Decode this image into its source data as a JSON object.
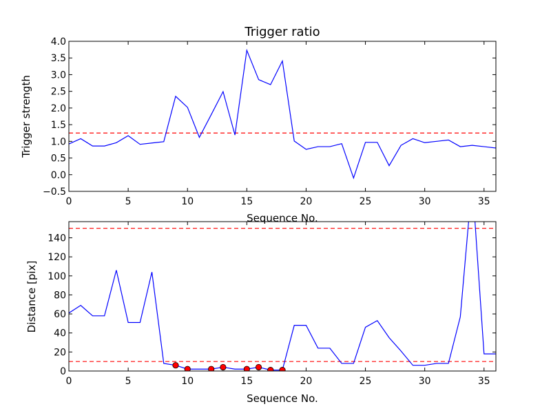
{
  "chart_data": [
    {
      "type": "line",
      "title": "Trigger ratio",
      "xlabel": "Sequence No.",
      "ylabel": "Trigger strength",
      "xlim": [
        0,
        36
      ],
      "ylim": [
        -0.5,
        4.0
      ],
      "xticks": [
        "0",
        "5",
        "10",
        "15",
        "20",
        "25",
        "30",
        "35"
      ],
      "yticks": [
        "−0.5",
        "0.0",
        "0.5",
        "1.0",
        "1.5",
        "2.0",
        "2.5",
        "3.0",
        "3.5",
        "4.0"
      ],
      "grid": false,
      "threshold": 1.25,
      "line_color": "#0000ff",
      "threshold_color": "#ff0000",
      "x": [
        0,
        1,
        2,
        3,
        4,
        5,
        6,
        7,
        8,
        9,
        10,
        11,
        12,
        13,
        14,
        15,
        16,
        17,
        18,
        19,
        20,
        21,
        22,
        23,
        24,
        25,
        26,
        27,
        28,
        29,
        30,
        31,
        32,
        33,
        34,
        35,
        36
      ],
      "y": [
        0.92,
        1.08,
        0.86,
        0.86,
        0.96,
        1.17,
        0.91,
        0.95,
        0.99,
        2.35,
        2.02,
        1.12,
        1.8,
        2.49,
        1.19,
        3.73,
        2.85,
        2.7,
        3.41,
        1.01,
        0.76,
        0.84,
        0.84,
        0.93,
        -0.1,
        0.97,
        0.97,
        0.27,
        0.88,
        1.08,
        0.96,
        1.0,
        1.04,
        0.84,
        0.88,
        0.84,
        0.8
      ]
    },
    {
      "type": "line",
      "title": "",
      "xlabel": "Sequence No.",
      "ylabel": "Distance [pix]",
      "xlim": [
        0,
        36
      ],
      "ylim": [
        0,
        157
      ],
      "xticks": [
        "0",
        "5",
        "10",
        "15",
        "20",
        "25",
        "30",
        "35"
      ],
      "yticks": [
        "0",
        "20",
        "40",
        "60",
        "80",
        "100",
        "120",
        "140"
      ],
      "grid": false,
      "thresholds": [
        10,
        150
      ],
      "line_color": "#0000ff",
      "threshold_color": "#ff0000",
      "marker_color": "#ff0000",
      "x": [
        0,
        1,
        2,
        3,
        4,
        5,
        6,
        7,
        8,
        9,
        10,
        11,
        12,
        13,
        14,
        15,
        16,
        17,
        18,
        19,
        20,
        21,
        22,
        23,
        24,
        25,
        26,
        27,
        28,
        29,
        30,
        31,
        32,
        33,
        34,
        35,
        36
      ],
      "y": [
        61,
        69,
        58,
        58,
        106,
        51,
        51,
        104,
        8,
        6,
        2,
        2,
        2,
        4,
        2,
        2,
        4,
        1,
        1,
        48,
        48,
        24,
        24,
        8,
        8,
        46,
        53,
        35,
        21,
        6,
        6,
        8,
        8,
        57,
        200,
        18,
        18
      ],
      "markers": {
        "x": [
          9,
          10,
          12,
          13,
          15,
          16,
          17,
          18
        ],
        "y": [
          6,
          2,
          2,
          4,
          2,
          4,
          1,
          1
        ]
      }
    }
  ]
}
